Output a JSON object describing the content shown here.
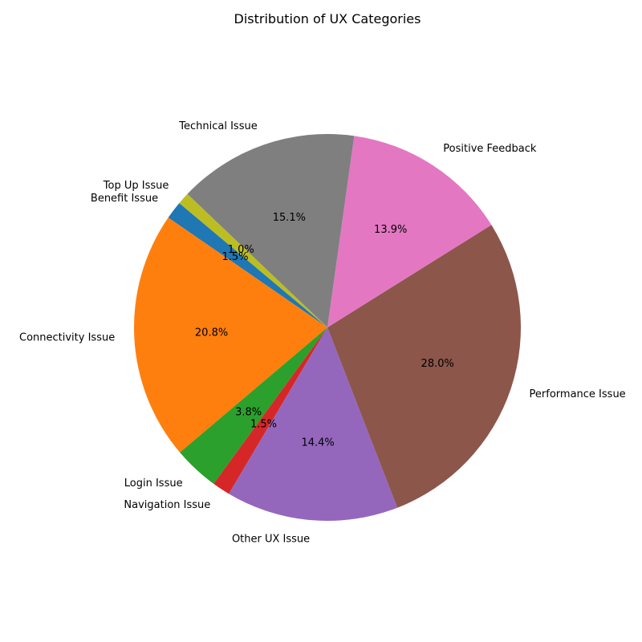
{
  "chart_data": {
    "type": "pie",
    "title": "Distribution of UX Categories",
    "start_angle_deg": 140,
    "direction": "counterclockwise",
    "slices": [
      {
        "label": "Benefit Issue",
        "value": 1.5,
        "pct_text": "1.5%",
        "color": "#1f77b4"
      },
      {
        "label": "Connectivity Issue",
        "value": 20.8,
        "pct_text": "20.8%",
        "color": "#ff7f0e"
      },
      {
        "label": "Login Issue",
        "value": 3.8,
        "pct_text": "3.8%",
        "color": "#2ca02c"
      },
      {
        "label": "Navigation Issue",
        "value": 1.5,
        "pct_text": "1.5%",
        "color": "#d62728"
      },
      {
        "label": "Other UX Issue",
        "value": 14.4,
        "pct_text": "14.4%",
        "color": "#9467bd"
      },
      {
        "label": "Performance Issue",
        "value": 28.0,
        "pct_text": "28.0%",
        "color": "#8c564b"
      },
      {
        "label": "Positive Feedback",
        "value": 13.9,
        "pct_text": "13.9%",
        "color": "#e377c2"
      },
      {
        "label": "Technical Issue",
        "value": 15.1,
        "pct_text": "15.1%",
        "color": "#7f7f7f"
      },
      {
        "label": "Top Up Issue",
        "value": 1.0,
        "pct_text": "1.0%",
        "color": "#bcbd22"
      }
    ]
  }
}
